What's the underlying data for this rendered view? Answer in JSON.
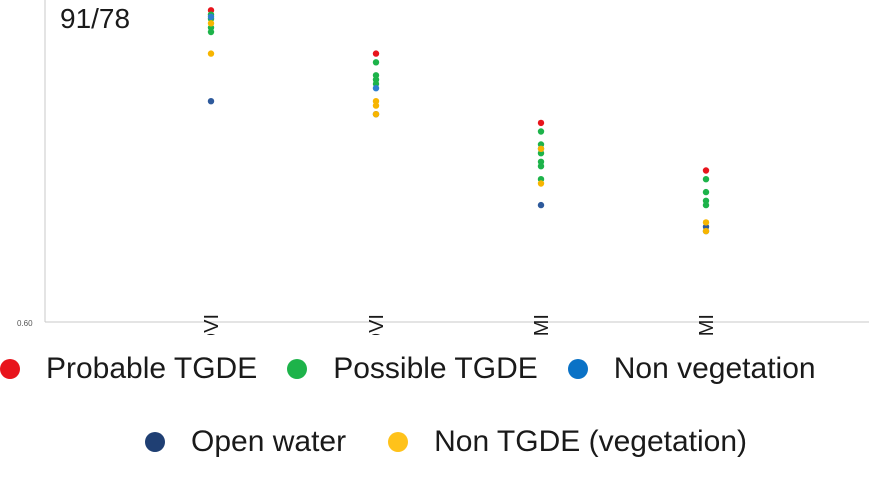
{
  "chart_data": {
    "type": "scatter",
    "title": "91/78",
    "y_tick_label": "0.60",
    "categories": [
      "W NDVI",
      "D NDVI",
      "W NDMI",
      "D NDMI"
    ],
    "series": [
      {
        "name": "Probable TGDE",
        "color": "#e8141c",
        "points": [
          {
            "x": "W NDVI",
            "y": 1.32
          },
          {
            "x": "D NDVI",
            "y": 1.22
          },
          {
            "x": "W NDMI",
            "y": 1.06
          },
          {
            "x": "D NDMI",
            "y": 0.95
          }
        ]
      },
      {
        "name": "Possible TGDE",
        "color": "#1db34a",
        "points": [
          {
            "x": "W NDVI",
            "y": 1.31
          },
          {
            "x": "W NDVI",
            "y": 1.3
          },
          {
            "x": "W NDVI",
            "y": 1.28
          },
          {
            "x": "W NDVI",
            "y": 1.27
          },
          {
            "x": "D NDVI",
            "y": 1.2
          },
          {
            "x": "D NDVI",
            "y": 1.17
          },
          {
            "x": "D NDVI",
            "y": 1.16
          },
          {
            "x": "D NDVI",
            "y": 1.15
          },
          {
            "x": "W NDMI",
            "y": 1.04
          },
          {
            "x": "W NDMI",
            "y": 1.01
          },
          {
            "x": "W NDMI",
            "y": 0.99
          },
          {
            "x": "W NDMI",
            "y": 0.97
          },
          {
            "x": "W NDMI",
            "y": 0.96
          },
          {
            "x": "W NDMI",
            "y": 0.93
          },
          {
            "x": "D NDMI",
            "y": 0.93
          },
          {
            "x": "D NDMI",
            "y": 0.9
          },
          {
            "x": "D NDMI",
            "y": 0.88
          },
          {
            "x": "D NDMI",
            "y": 0.87
          }
        ]
      },
      {
        "name": "Non vegetation",
        "color": "#2f7fd0",
        "points": [
          {
            "x": "W NDVI",
            "y": 1.305
          },
          {
            "x": "D NDVI",
            "y": 1.14
          },
          {
            "x": "W NDMI",
            "y": 1.0
          },
          {
            "x": "D NDMI",
            "y": 0.81
          }
        ]
      },
      {
        "name": "Open water",
        "color": "#2e5a9c",
        "points": [
          {
            "x": "W NDVI",
            "y": 1.11
          },
          {
            "x": "D NDVI",
            "y": 1.08
          },
          {
            "x": "W NDMI",
            "y": 0.87
          },
          {
            "x": "D NDMI",
            "y": 0.82
          }
        ]
      },
      {
        "name": "Non TGDE (vegetation)",
        "color": "#f7b500",
        "points": [
          {
            "x": "W NDVI",
            "y": 1.29
          },
          {
            "x": "W NDVI",
            "y": 1.22
          },
          {
            "x": "D NDVI",
            "y": 1.11
          },
          {
            "x": "D NDVI",
            "y": 1.1
          },
          {
            "x": "D NDVI",
            "y": 1.08
          },
          {
            "x": "W NDMI",
            "y": 1.0
          },
          {
            "x": "W NDMI",
            "y": 0.92
          },
          {
            "x": "D NDMI",
            "y": 0.83
          },
          {
            "x": "D NDMI",
            "y": 0.81
          }
        ]
      }
    ],
    "ylim": [
      0.6,
      1.33
    ],
    "grid": false,
    "legend_position": "bottom"
  },
  "legend": {
    "row1": [
      {
        "label": "Probable TGDE",
        "color": "#e8141c"
      },
      {
        "label": "Possible TGDE",
        "color": "#1db34a"
      },
      {
        "label": "Non vegetation",
        "color": "#0a72c6"
      }
    ],
    "row2": [
      {
        "label": "Open water",
        "color": "#1f3f73"
      },
      {
        "label": "Non TGDE (vegetation)",
        "color": "#ffc21a"
      }
    ]
  }
}
